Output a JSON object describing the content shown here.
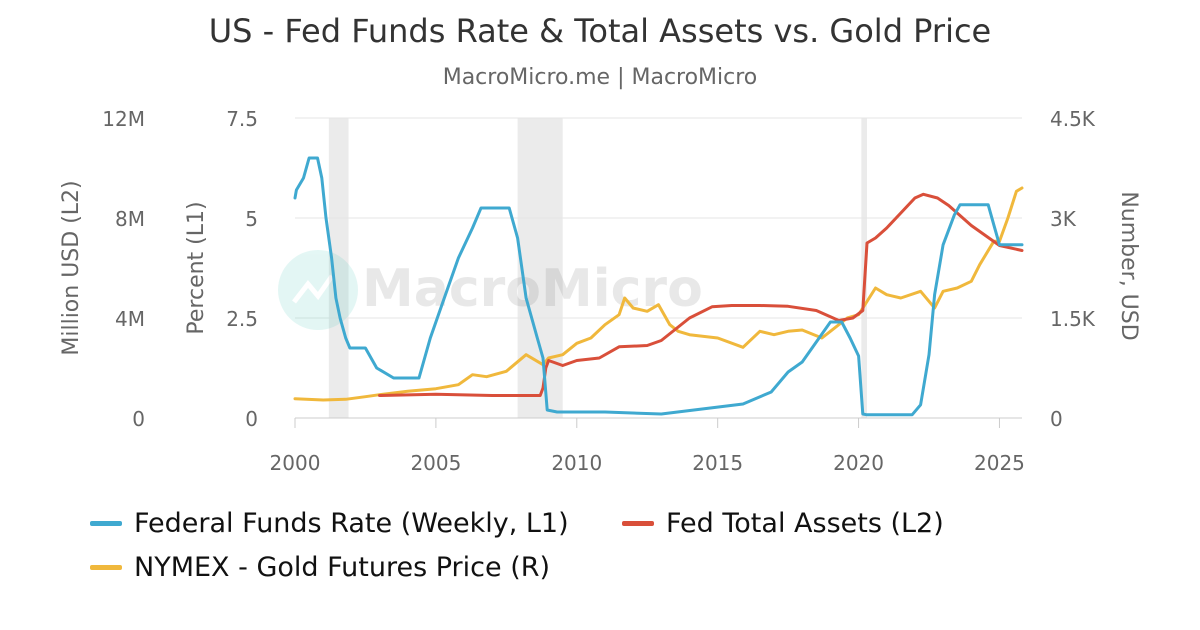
{
  "title": "US - Fed Funds Rate & Total Assets vs. Gold Price",
  "subtitle": "MacroMicro.me | MacroMicro",
  "watermark": "MacroMicro",
  "colors": {
    "fed_funds": "#3fa9d0",
    "fed_assets": "#d94f3a",
    "gold": "#f0b83c",
    "recession": "#ebebeb",
    "grid": "#e6e6e6"
  },
  "chart_data": {
    "type": "line",
    "title": "US - Fed Funds Rate & Total Assets vs. Gold Price",
    "x_range": [
      2000,
      2025.8
    ],
    "x_ticks": [
      2000,
      2005,
      2010,
      2015,
      2020,
      2025
    ],
    "x_tick_labels": [
      "2000",
      "2005",
      "2010",
      "2015",
      "2020",
      "2025"
    ],
    "axes": {
      "left_outer": {
        "label": "Million USD (L2)",
        "range": [
          0,
          12000000
        ],
        "ticks": [
          0,
          4000000,
          8000000,
          12000000
        ],
        "tick_labels": [
          "0",
          "4M",
          "8M",
          "12M"
        ]
      },
      "left_inner": {
        "label": "Percent (L1)",
        "range": [
          0,
          7.5
        ],
        "ticks": [
          0,
          2.5,
          5,
          7.5
        ],
        "tick_labels": [
          "0",
          "2.5",
          "5",
          "7.5"
        ]
      },
      "right": {
        "label": "Number, USD",
        "range": [
          0,
          4500
        ],
        "ticks": [
          0,
          1500,
          3000,
          4500
        ],
        "tick_labels": [
          "0",
          "1.5K",
          "3K",
          "4.5K"
        ]
      }
    },
    "grid": true,
    "legend_position": "bottom",
    "recession_bands": [
      [
        2001.2,
        2001.9
      ],
      [
        2007.9,
        2009.5
      ],
      [
        2020.1,
        2020.3
      ]
    ],
    "series": [
      {
        "name": "Federal Funds Rate (Weekly, L1)",
        "axis": "left_inner",
        "x": [
          2000.0,
          2000.05,
          2000.3,
          2000.5,
          2000.8,
          2000.95,
          2001.1,
          2001.3,
          2001.45,
          2001.6,
          2001.8,
          2001.95,
          2002.5,
          2002.9,
          2003.5,
          2004.4,
          2004.8,
          2005.3,
          2005.8,
          2006.3,
          2006.6,
          2007.6,
          2007.9,
          2008.2,
          2008.6,
          2008.8,
          2008.95,
          2009.3,
          2011.0,
          2013.0,
          2015.9,
          2016.9,
          2017.5,
          2018.0,
          2018.5,
          2019.0,
          2019.4,
          2019.7,
          2020.0,
          2020.15,
          2020.3,
          2021.9,
          2022.2,
          2022.5,
          2022.7,
          2023.0,
          2023.4,
          2023.6,
          2024.6,
          2024.8,
          2025.0,
          2025.8
        ],
        "y": [
          5.5,
          5.7,
          6.0,
          6.5,
          6.5,
          6.0,
          5.0,
          4.0,
          3.0,
          2.5,
          2.0,
          1.75,
          1.75,
          1.25,
          1.0,
          1.0,
          2.0,
          3.0,
          4.0,
          4.75,
          5.25,
          5.25,
          4.5,
          3.0,
          2.0,
          1.5,
          0.2,
          0.15,
          0.15,
          0.1,
          0.35,
          0.65,
          1.15,
          1.4,
          1.9,
          2.4,
          2.4,
          2.0,
          1.55,
          0.1,
          0.08,
          0.08,
          0.33,
          1.58,
          3.08,
          4.33,
          5.08,
          5.33,
          5.33,
          4.83,
          4.33,
          4.33
        ]
      },
      {
        "name": "Fed Total Assets (L2)",
        "axis": "left_outer",
        "x": [
          2003.0,
          2005.0,
          2007.0,
          2008.7,
          2008.8,
          2008.9,
          2009.0,
          2009.5,
          2010.0,
          2010.8,
          2011.5,
          2012.5,
          2013.0,
          2014.0,
          2014.8,
          2015.5,
          2016.5,
          2017.5,
          2018.5,
          2019.3,
          2019.8,
          2020.15,
          2020.3,
          2020.6,
          2021.0,
          2022.0,
          2022.3,
          2022.8,
          2023.2,
          2024.0,
          2025.0,
          2025.8
        ],
        "y": [
          900000,
          950000,
          900000,
          900000,
          1200000,
          2000000,
          2300000,
          2100000,
          2300000,
          2400000,
          2850000,
          2900000,
          3100000,
          4000000,
          4450000,
          4500000,
          4500000,
          4470000,
          4300000,
          3900000,
          4000000,
          4300000,
          7000000,
          7200000,
          7600000,
          8800000,
          8950000,
          8800000,
          8500000,
          7700000,
          6900000,
          6700000
        ]
      },
      {
        "name": "NYMEX - Gold Futures Price (R)",
        "axis": "right",
        "x": [
          2000.0,
          2001.0,
          2001.8,
          2002.5,
          2003.0,
          2004.0,
          2005.0,
          2005.8,
          2006.3,
          2006.8,
          2007.5,
          2008.2,
          2008.8,
          2009.0,
          2009.5,
          2010.0,
          2010.5,
          2011.0,
          2011.5,
          2011.7,
          2012.0,
          2012.5,
          2012.9,
          2013.3,
          2013.6,
          2014.0,
          2015.0,
          2015.9,
          2016.5,
          2017.0,
          2017.5,
          2018.0,
          2018.7,
          2019.0,
          2019.6,
          2020.0,
          2020.6,
          2021.0,
          2021.5,
          2022.2,
          2022.7,
          2023.0,
          2023.5,
          2024.0,
          2024.3,
          2024.8,
          2025.0,
          2025.3,
          2025.6,
          2025.8
        ],
        "y": [
          290,
          270,
          280,
          320,
          350,
          400,
          440,
          500,
          650,
          620,
          700,
          950,
          800,
          900,
          950,
          1120,
          1200,
          1400,
          1550,
          1800,
          1650,
          1600,
          1700,
          1400,
          1300,
          1250,
          1200,
          1060,
          1300,
          1250,
          1300,
          1320,
          1200,
          1300,
          1500,
          1550,
          1950,
          1850,
          1800,
          1900,
          1650,
          1900,
          1950,
          2050,
          2300,
          2650,
          2650,
          3000,
          3400,
          3450
        ]
      }
    ]
  }
}
